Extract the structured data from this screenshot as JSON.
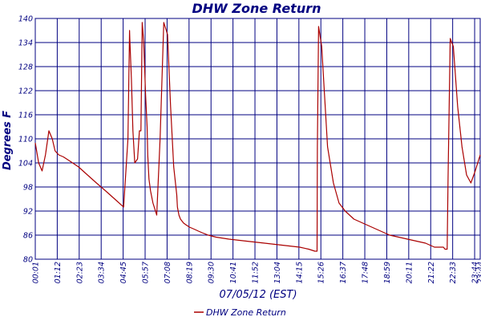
{
  "chart_data": {
    "type": "line",
    "title": "DHW Zone Return",
    "xlabel": "07/05/12 (EST)",
    "ylabel": "Degrees F",
    "ylim": [
      80,
      140
    ],
    "yticks": [
      80,
      86,
      92,
      98,
      104,
      110,
      116,
      122,
      128,
      134,
      140
    ],
    "xlim": [
      "00:00",
      "24:00"
    ],
    "xtick_labels": [
      "00:01",
      "01:12",
      "02:23",
      "03:34",
      "04:45",
      "05:57",
      "07:08",
      "08:19",
      "09:30",
      "10:41",
      "11:52",
      "13:04",
      "14:15",
      "15:26",
      "16:37",
      "17:48",
      "18:59",
      "20:11",
      "21:22",
      "22:33",
      "23:44",
      "23:44"
    ],
    "grid": true,
    "legend_position": "bottom-center",
    "series": [
      {
        "name": "DHW Zone Return",
        "color": "#aa0000",
        "x": [
          "00:00",
          "00:11",
          "00:22",
          "00:33",
          "00:44",
          "00:55",
          "01:04",
          "01:16",
          "01:31",
          "01:51",
          "02:20",
          "02:49",
          "03:18",
          "03:48",
          "04:17",
          "04:46",
          "05:00",
          "05:05",
          "05:06",
          "05:11",
          "05:16",
          "05:22",
          "05:31",
          "05:37",
          "05:42",
          "05:46",
          "05:51",
          "05:57",
          "06:02",
          "06:04",
          "06:08",
          "06:13",
          "06:21",
          "06:33",
          "06:44",
          "06:56",
          "07:08",
          "07:18",
          "07:28",
          "07:38",
          "07:40",
          "07:45",
          "07:50",
          "08:00",
          "08:09",
          "08:19",
          "08:34",
          "08:48",
          "09:03",
          "09:20",
          "09:45",
          "10:27",
          "11:24",
          "12:22",
          "13:19",
          "14:16",
          "14:45",
          "15:05",
          "15:12",
          "15:13",
          "15:17",
          "15:27",
          "15:36",
          "15:46",
          "16:05",
          "16:23",
          "16:43",
          "17:11",
          "17:40",
          "18:09",
          "18:38",
          "19:07",
          "19:36",
          "20:05",
          "20:34",
          "21:03",
          "21:32",
          "22:01",
          "22:06",
          "22:08",
          "22:10",
          "22:13",
          "22:16",
          "22:23",
          "22:33",
          "22:47",
          "23:01",
          "23:16",
          "23:30",
          "23:44",
          "24:00"
        ],
        "y": [
          109,
          104,
          102,
          106,
          112,
          110,
          107,
          106,
          105.5,
          104.5,
          103,
          101,
          99,
          97,
          95,
          93,
          110,
          137,
          135,
          125,
          112,
          104,
          105,
          112,
          112,
          139,
          134,
          121,
          113,
          106,
          100,
          97,
          94,
          91,
          110,
          139,
          136,
          118,
          103,
          96,
          93,
          91,
          90,
          89,
          88.5,
          88,
          87.5,
          87,
          86.5,
          86,
          85.5,
          85,
          84.5,
          84,
          83.5,
          83,
          82.5,
          82,
          82,
          108,
          138,
          133,
          121,
          108,
          99,
          94,
          92,
          90,
          89,
          88,
          87,
          86,
          85.5,
          85,
          84.5,
          84,
          83,
          83,
          82.5,
          82.5,
          82.5,
          82.5,
          100,
          135,
          133,
          118,
          108,
          101,
          99,
          102,
          106
        ]
      }
    ]
  }
}
